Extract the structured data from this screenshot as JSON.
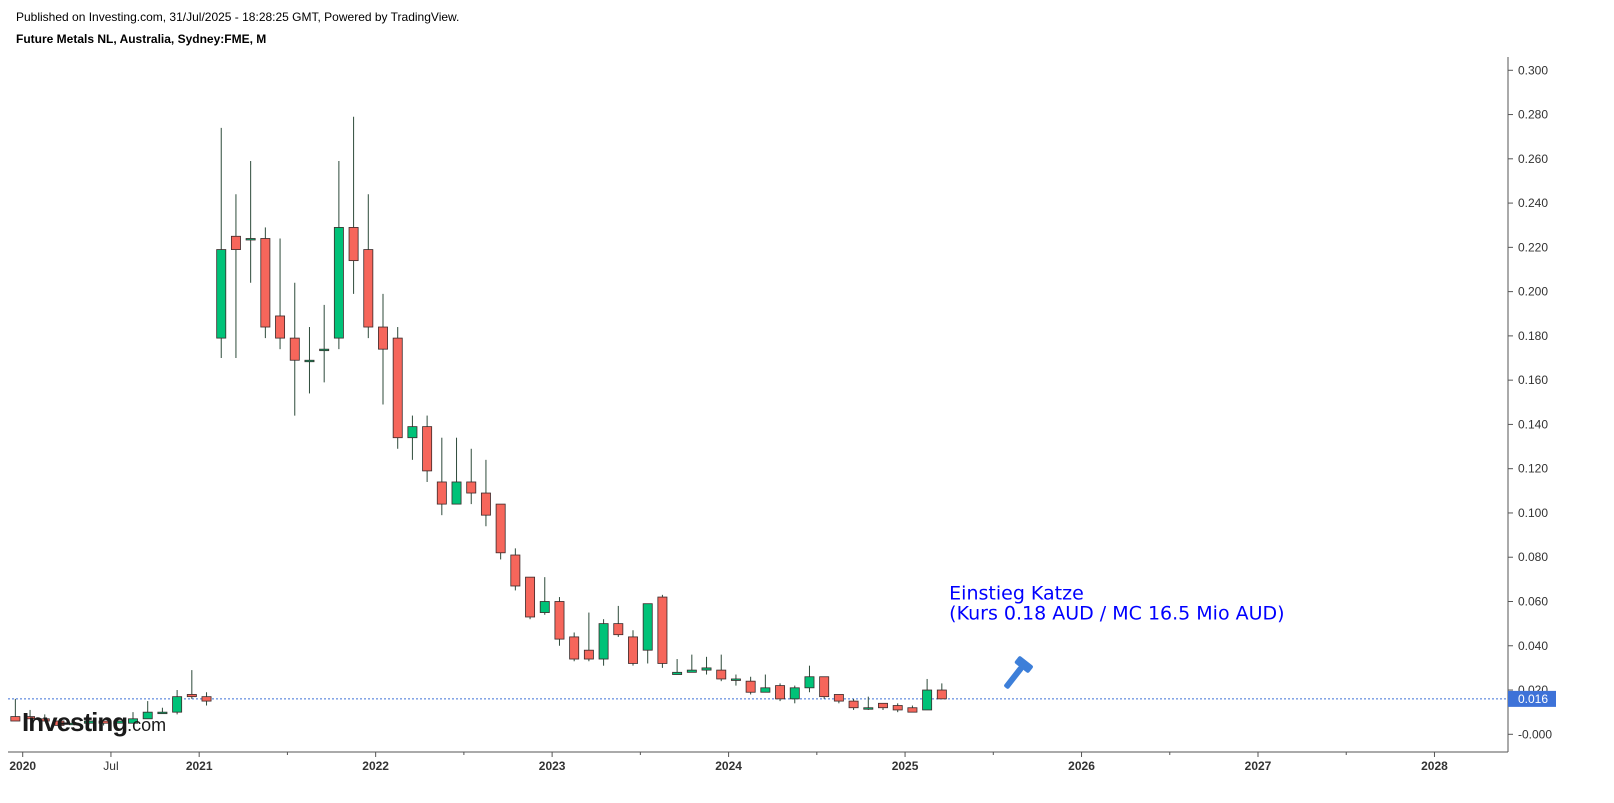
{
  "header": {
    "published": "Published on Investing.com, 31/Jul/2025 - 18:28:25 GMT, Powered by TradingView.",
    "symbol": "Future Metals NL, Australia, Sydney:FME, M"
  },
  "logo": {
    "brand": "Investing",
    "suffix": ".com"
  },
  "colors": {
    "up": "#00c278",
    "down": "#f6665b",
    "wick": "#2d4a3a",
    "last_price_bg": "#3d72d8",
    "annotation": "#0000ff",
    "gavel": "#3d7fd9"
  },
  "chart_data": {
    "type": "candlestick",
    "interval": "M",
    "ylim": [
      -0.008,
      0.306
    ],
    "y_ticks": [
      "0.300",
      "0.280",
      "0.260",
      "0.240",
      "0.220",
      "0.200",
      "0.180",
      "0.160",
      "0.140",
      "0.120",
      "0.100",
      "0.080",
      "0.060",
      "0.040",
      "0.020",
      "-0.000"
    ],
    "x_axis_labels": [
      {
        "label": "2020",
        "date": "2020-01"
      },
      {
        "label": "Jul",
        "date": "2020-07"
      },
      {
        "label": "2021",
        "date": "2021-01"
      },
      {
        "label": "2022",
        "date": "2022-01"
      },
      {
        "label": "2023",
        "date": "2023-01"
      },
      {
        "label": "2024",
        "date": "2024-01"
      },
      {
        "label": "2025",
        "date": "2025-01"
      },
      {
        "label": "2026",
        "date": "2026-01"
      },
      {
        "label": "2027",
        "date": "2027-01"
      },
      {
        "label": "2028",
        "date": "2028-01"
      }
    ],
    "x_range": [
      "2019-12",
      "2028-05"
    ],
    "last_price": "0.016",
    "annotation": {
      "lines": [
        "Einstieg Katze",
        "(Kurs 0.18 AUD / MC 16.5 Mio AUD)"
      ],
      "date": "2025-04",
      "price": 0.051
    },
    "candles": [
      {
        "date": "2019-12",
        "o": 0.008,
        "h": 0.016,
        "l": 0.007,
        "c": 0.006
      },
      {
        "date": "2020-01",
        "o": 0.008,
        "h": 0.011,
        "l": 0.007,
        "c": 0.007
      },
      {
        "date": "2020-02",
        "o": 0.007,
        "h": 0.009,
        "l": 0.006,
        "c": 0.006
      },
      {
        "date": "2020-03",
        "o": 0.006,
        "h": 0.007,
        "l": 0.003,
        "c": 0.004
      },
      {
        "date": "2020-04",
        "o": 0.005,
        "h": 0.005,
        "l": 0.004,
        "c": 0.005
      },
      {
        "date": "2020-05",
        "o": 0.005,
        "h": 0.007,
        "l": 0.004,
        "c": 0.006
      },
      {
        "date": "2020-06",
        "o": 0.006,
        "h": 0.007,
        "l": 0.004,
        "c": 0.005
      },
      {
        "date": "2020-07",
        "o": 0.005,
        "h": 0.006,
        "l": 0.005,
        "c": 0.006
      },
      {
        "date": "2020-08",
        "o": 0.005,
        "h": 0.01,
        "l": 0.005,
        "c": 0.007
      },
      {
        "date": "2020-09",
        "o": 0.007,
        "h": 0.015,
        "l": 0.007,
        "c": 0.01
      },
      {
        "date": "2020-10",
        "o": 0.01,
        "h": 0.012,
        "l": 0.01,
        "c": 0.01
      },
      {
        "date": "2020-11",
        "o": 0.01,
        "h": 0.02,
        "l": 0.009,
        "c": 0.017
      },
      {
        "date": "2020-12",
        "o": 0.018,
        "h": 0.029,
        "l": 0.016,
        "c": 0.017
      },
      {
        "date": "2021-01",
        "o": 0.017,
        "h": 0.019,
        "l": 0.013,
        "c": 0.015
      },
      {
        "date": "2021-02",
        "o": 0.179,
        "h": 0.274,
        "l": 0.17,
        "c": 0.219
      },
      {
        "date": "2021-03",
        "o": 0.225,
        "h": 0.244,
        "l": 0.17,
        "c": 0.219
      },
      {
        "date": "2021-04",
        "o": 0.224,
        "h": 0.259,
        "l": 0.204,
        "c": 0.224
      },
      {
        "date": "2021-05",
        "o": 0.224,
        "h": 0.229,
        "l": 0.179,
        "c": 0.184
      },
      {
        "date": "2021-06",
        "o": 0.189,
        "h": 0.224,
        "l": 0.174,
        "c": 0.179
      },
      {
        "date": "2021-07",
        "o": 0.179,
        "h": 0.204,
        "l": 0.144,
        "c": 0.169
      },
      {
        "date": "2021-08",
        "o": 0.169,
        "h": 0.184,
        "l": 0.154,
        "c": 0.169
      },
      {
        "date": "2021-09",
        "o": 0.174,
        "h": 0.194,
        "l": 0.159,
        "c": 0.174
      },
      {
        "date": "2021-10",
        "o": 0.179,
        "h": 0.259,
        "l": 0.174,
        "c": 0.229
      },
      {
        "date": "2021-11",
        "o": 0.229,
        "h": 0.279,
        "l": 0.199,
        "c": 0.214
      },
      {
        "date": "2021-12",
        "o": 0.219,
        "h": 0.244,
        "l": 0.179,
        "c": 0.184
      },
      {
        "date": "2022-01",
        "o": 0.184,
        "h": 0.199,
        "l": 0.149,
        "c": 0.174
      },
      {
        "date": "2022-02",
        "o": 0.179,
        "h": 0.184,
        "l": 0.129,
        "c": 0.134
      },
      {
        "date": "2022-03",
        "o": 0.134,
        "h": 0.144,
        "l": 0.124,
        "c": 0.139
      },
      {
        "date": "2022-04",
        "o": 0.139,
        "h": 0.144,
        "l": 0.114,
        "c": 0.119
      },
      {
        "date": "2022-05",
        "o": 0.114,
        "h": 0.134,
        "l": 0.099,
        "c": 0.104
      },
      {
        "date": "2022-06",
        "o": 0.104,
        "h": 0.134,
        "l": 0.104,
        "c": 0.114
      },
      {
        "date": "2022-07",
        "o": 0.114,
        "h": 0.129,
        "l": 0.104,
        "c": 0.109
      },
      {
        "date": "2022-08",
        "o": 0.109,
        "h": 0.124,
        "l": 0.094,
        "c": 0.099
      },
      {
        "date": "2022-09",
        "o": 0.104,
        "h": 0.104,
        "l": 0.079,
        "c": 0.082
      },
      {
        "date": "2022-10",
        "o": 0.081,
        "h": 0.084,
        "l": 0.065,
        "c": 0.067
      },
      {
        "date": "2022-11",
        "o": 0.071,
        "h": 0.071,
        "l": 0.052,
        "c": 0.053
      },
      {
        "date": "2022-12",
        "o": 0.055,
        "h": 0.071,
        "l": 0.054,
        "c": 0.06
      },
      {
        "date": "2023-01",
        "o": 0.06,
        "h": 0.062,
        "l": 0.04,
        "c": 0.043
      },
      {
        "date": "2023-02",
        "o": 0.044,
        "h": 0.046,
        "l": 0.033,
        "c": 0.034
      },
      {
        "date": "2023-03",
        "o": 0.038,
        "h": 0.055,
        "l": 0.033,
        "c": 0.034
      },
      {
        "date": "2023-04",
        "o": 0.034,
        "h": 0.052,
        "l": 0.031,
        "c": 0.05
      },
      {
        "date": "2023-05",
        "o": 0.05,
        "h": 0.058,
        "l": 0.044,
        "c": 0.045
      },
      {
        "date": "2023-06",
        "o": 0.044,
        "h": 0.047,
        "l": 0.031,
        "c": 0.032
      },
      {
        "date": "2023-07",
        "o": 0.038,
        "h": 0.059,
        "l": 0.032,
        "c": 0.059
      },
      {
        "date": "2023-08",
        "o": 0.062,
        "h": 0.063,
        "l": 0.03,
        "c": 0.032
      },
      {
        "date": "2023-09",
        "o": 0.027,
        "h": 0.034,
        "l": 0.027,
        "c": 0.028
      },
      {
        "date": "2023-10",
        "o": 0.028,
        "h": 0.036,
        "l": 0.028,
        "c": 0.029
      },
      {
        "date": "2023-11",
        "o": 0.029,
        "h": 0.035,
        "l": 0.027,
        "c": 0.03
      },
      {
        "date": "2023-12",
        "o": 0.029,
        "h": 0.036,
        "l": 0.024,
        "c": 0.025
      },
      {
        "date": "2024-01",
        "o": 0.025,
        "h": 0.027,
        "l": 0.022,
        "c": 0.025
      },
      {
        "date": "2024-02",
        "o": 0.024,
        "h": 0.026,
        "l": 0.018,
        "c": 0.019
      },
      {
        "date": "2024-03",
        "o": 0.019,
        "h": 0.027,
        "l": 0.019,
        "c": 0.021
      },
      {
        "date": "2024-04",
        "o": 0.022,
        "h": 0.023,
        "l": 0.015,
        "c": 0.016
      },
      {
        "date": "2024-05",
        "o": 0.016,
        "h": 0.022,
        "l": 0.014,
        "c": 0.021
      },
      {
        "date": "2024-06",
        "o": 0.021,
        "h": 0.031,
        "l": 0.019,
        "c": 0.026
      },
      {
        "date": "2024-07",
        "o": 0.026,
        "h": 0.026,
        "l": 0.016,
        "c": 0.017
      },
      {
        "date": "2024-08",
        "o": 0.018,
        "h": 0.018,
        "l": 0.014,
        "c": 0.015
      },
      {
        "date": "2024-09",
        "o": 0.015,
        "h": 0.016,
        "l": 0.011,
        "c": 0.012
      },
      {
        "date": "2024-10",
        "o": 0.012,
        "h": 0.017,
        "l": 0.011,
        "c": 0.012
      },
      {
        "date": "2024-11",
        "o": 0.014,
        "h": 0.014,
        "l": 0.011,
        "c": 0.012
      },
      {
        "date": "2024-12",
        "o": 0.013,
        "h": 0.014,
        "l": 0.01,
        "c": 0.011
      },
      {
        "date": "2025-01",
        "o": 0.012,
        "h": 0.013,
        "l": 0.01,
        "c": 0.01
      },
      {
        "date": "2025-02",
        "o": 0.011,
        "h": 0.025,
        "l": 0.011,
        "c": 0.02
      },
      {
        "date": "2025-03",
        "o": 0.02,
        "h": 0.023,
        "l": 0.016,
        "c": 0.016
      }
    ]
  }
}
